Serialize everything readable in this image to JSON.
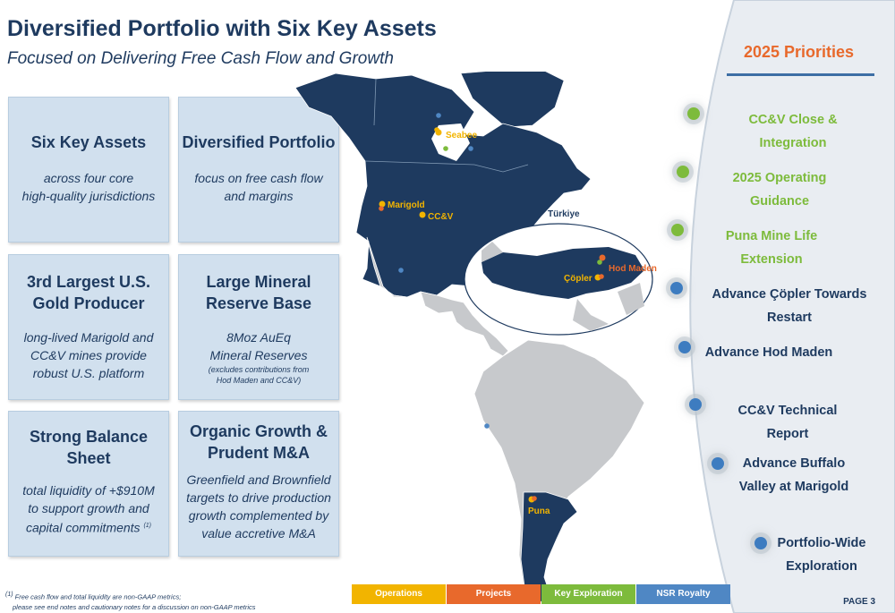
{
  "header": {
    "title": "Diversified Portfolio with Six Key Assets",
    "subtitle": "Focused on Delivering Free Cash Flow and Growth"
  },
  "cards": [
    {
      "head": "Six Key Assets",
      "body_lines": [
        "across four core",
        "high-quality jurisdictions"
      ]
    },
    {
      "head": "Diversified Portfolio",
      "body_lines": [
        "focus on free cash flow",
        "and margins"
      ]
    },
    {
      "head_lines": [
        "3rd Largest U.S.",
        "Gold Producer"
      ],
      "body_lines": [
        "long-lived Marigold and",
        "CC&V mines provide",
        "robust U.S. platform"
      ]
    },
    {
      "head_lines": [
        "Large Mineral",
        "Reserve Base"
      ],
      "body_lines": [
        "8Moz AuEq",
        "Mineral Reserves"
      ],
      "note_lines": [
        "(excludes contributions from",
        "Hod Maden and CC&V)"
      ]
    },
    {
      "head_lines": [
        "Strong Balance",
        "Sheet"
      ],
      "body_lines": [
        "total liquidity of +$910M",
        "to support growth and",
        "capital commitments"
      ],
      "superscript": "(1)"
    },
    {
      "head_lines": [
        "Organic Growth &",
        "Prudent M&A"
      ],
      "body_lines": [
        "Greenfield and Brownfield",
        "targets to drive production",
        "growth complemented by",
        "value accretive M&A"
      ]
    }
  ],
  "map": {
    "inset_label": "Türkiye",
    "assets": [
      {
        "name": "Seabee",
        "color": "#f2b400"
      },
      {
        "name": "Marigold",
        "color": "#f2b400"
      },
      {
        "name": "CC&V",
        "color": "#f2b400"
      },
      {
        "name": "Çöpler",
        "color": "#f2b400"
      },
      {
        "name": "Hod Maden",
        "color": "#e8692c"
      },
      {
        "name": "Puna",
        "color": "#f2b400"
      }
    ]
  },
  "priorities": {
    "title": "2025 Priorities",
    "items": [
      {
        "lines": [
          "CC&V Close & Integration"
        ],
        "color": "#7dbb3c"
      },
      {
        "lines": [
          "2025 Operating Guidance"
        ],
        "color": "#7dbb3c"
      },
      {
        "lines": [
          "Puna Mine Life Extension"
        ],
        "color": "#7dbb3c"
      },
      {
        "lines": [
          "Advance Çöpler Towards Restart"
        ],
        "color": "#3d7cc0"
      },
      {
        "lines": [
          "Advance Hod Maden"
        ],
        "color": "#3d7cc0"
      },
      {
        "lines": [
          "CC&V Technical Report"
        ],
        "color": "#3d7cc0"
      },
      {
        "lines": [
          "Advance Buffalo",
          "Valley at Marigold"
        ],
        "color": "#3d7cc0"
      },
      {
        "lines": [
          "Portfolio-Wide",
          "Exploration"
        ],
        "color": "#3d7cc0"
      }
    ]
  },
  "legend": [
    {
      "label": "Operations",
      "color": "#f2b400"
    },
    {
      "label": "Projects",
      "color": "#e8692c"
    },
    {
      "label": "Key Exploration",
      "color": "#7dbb3c"
    },
    {
      "label": "NSR Royalty",
      "color": "#4f87c4"
    }
  ],
  "footnote": {
    "marker": "(1)",
    "lines": [
      "Free cash flow and total liquidity are non-GAAP metrics;",
      "please see end notes and cautionary notes for a discussion on non-GAAP metrics"
    ]
  },
  "page": "PAGE 3"
}
